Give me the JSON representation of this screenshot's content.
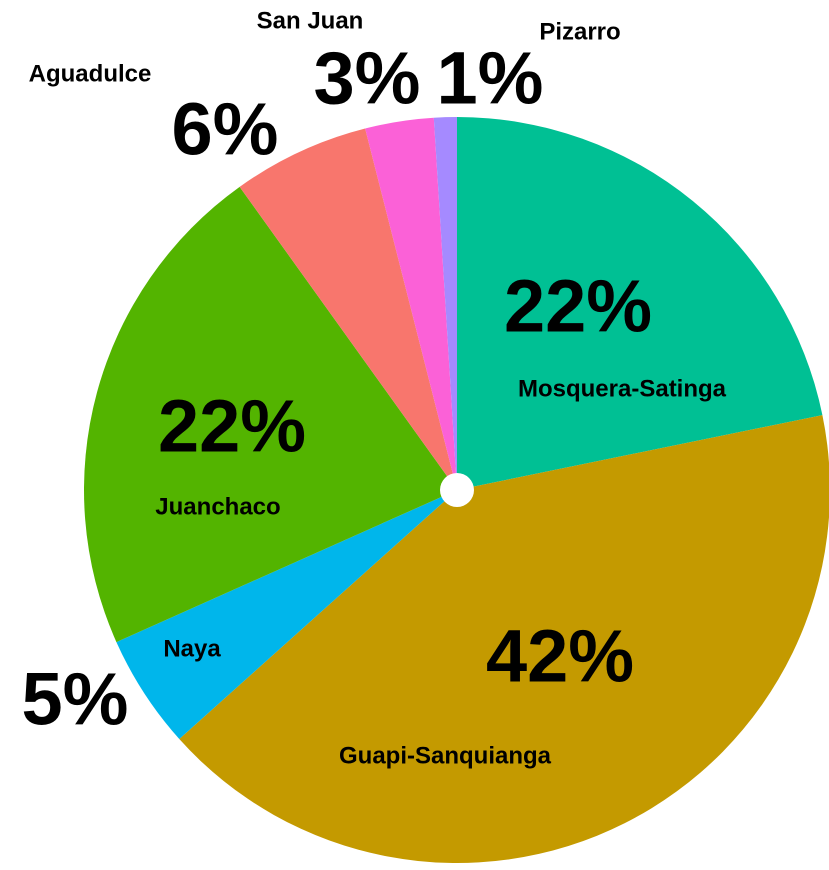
{
  "chart_data": {
    "type": "pie",
    "categories": [
      "Mosquera-Satinga",
      "Guapi-Sanquianga",
      "Naya",
      "Juanchaco",
      "Aguadulce",
      "San Juan",
      "Pizarro"
    ],
    "values": [
      22,
      42,
      5,
      22,
      6,
      3,
      1
    ],
    "value_labels": [
      "22%",
      "42%",
      "5%",
      "22%",
      "6%",
      "3%",
      "1%"
    ],
    "colors": [
      "#00c094",
      "#c49a00",
      "#00b6eb",
      "#53b400",
      "#f8766d",
      "#fb61d7",
      "#a58aff"
    ]
  }
}
